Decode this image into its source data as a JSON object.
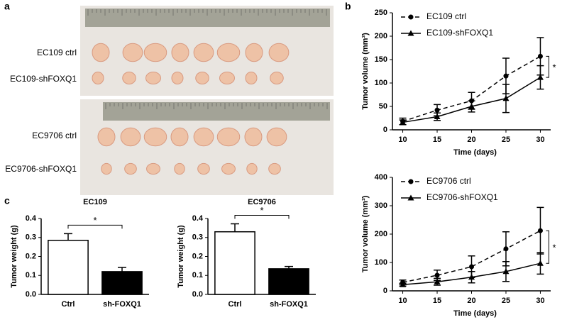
{
  "panel_labels": [
    "a",
    "b",
    "c"
  ],
  "photo": {
    "row_labels": [
      "EC109 ctrl",
      "EC109-shFOXQ1",
      "EC9706 ctrl",
      "EC9706-shFOXQ1"
    ]
  },
  "chart_data": [
    {
      "type": "line",
      "ylabel": "Tumor volume (mm³)",
      "xlabel": "Time (days)",
      "x": [
        10,
        15,
        20,
        25,
        30
      ],
      "xlim": [
        8.5,
        31.5
      ],
      "xticks": [
        10,
        15,
        20,
        25,
        30
      ],
      "ylim": [
        0,
        250
      ],
      "yticks": [
        0,
        50,
        100,
        150,
        200,
        250
      ],
      "legend": "upper left",
      "annotation": "*",
      "series": [
        {
          "name": "EC109 ctrl",
          "color": "#000000",
          "dash": true,
          "marker": "circle",
          "values": [
            18,
            42,
            62,
            115,
            157
          ],
          "errors": [
            7,
            12,
            18,
            38,
            40
          ]
        },
        {
          "name": "EC109-shFOXQ1",
          "color": "#000000",
          "dash": false,
          "marker": "triangle",
          "values": [
            16,
            28,
            50,
            67,
            112
          ],
          "errors": [
            5,
            8,
            12,
            30,
            25
          ]
        }
      ]
    },
    {
      "type": "line",
      "ylabel": "Tumor volume (mm³)",
      "xlabel": "Time (days)",
      "x": [
        10,
        15,
        20,
        25,
        30
      ],
      "xlim": [
        8.5,
        31.5
      ],
      "xticks": [
        10,
        15,
        20,
        25,
        30
      ],
      "ylim": [
        0,
        400
      ],
      "yticks": [
        0,
        100,
        200,
        300,
        400
      ],
      "legend": "upper left",
      "annotation": "*",
      "series": [
        {
          "name": "EC9706 ctrl",
          "color": "#000000",
          "dash": true,
          "marker": "circle",
          "values": [
            30,
            55,
            85,
            148,
            212
          ],
          "errors": [
            8,
            18,
            38,
            60,
            82
          ]
        },
        {
          "name": "EC9706-shFOXQ1",
          "color": "#000000",
          "dash": false,
          "marker": "triangle",
          "values": [
            22,
            32,
            48,
            68,
            97
          ],
          "errors": [
            5,
            12,
            20,
            35,
            38
          ]
        }
      ]
    },
    {
      "type": "bar",
      "title": "EC109",
      "ylabel": "Tumor weight (g)",
      "categories": [
        "Ctrl",
        "sh-FOXQ1"
      ],
      "values": [
        0.285,
        0.12
      ],
      "errors": [
        0.035,
        0.022
      ],
      "colors": [
        "#ffffff",
        "#000000"
      ],
      "ylim": [
        0,
        0.4
      ],
      "yticks": [
        {
          "value": 0,
          "label": "0.0"
        },
        0.1,
        0.2,
        0.3,
        0.4
      ],
      "annotation": "*"
    },
    {
      "type": "bar",
      "title": "EC9706",
      "ylabel": "Tumor weight (g)",
      "categories": [
        "Ctrl",
        "sh-FOXQ1"
      ],
      "values": [
        0.33,
        0.135
      ],
      "errors": [
        0.042,
        0.012
      ],
      "colors": [
        "#ffffff",
        "#000000"
      ],
      "ylim": [
        0,
        0.4
      ],
      "yticks": [
        {
          "value": 0,
          "label": "0.0"
        },
        0.1,
        0.2,
        0.3,
        0.4
      ],
      "annotation": "*"
    }
  ]
}
